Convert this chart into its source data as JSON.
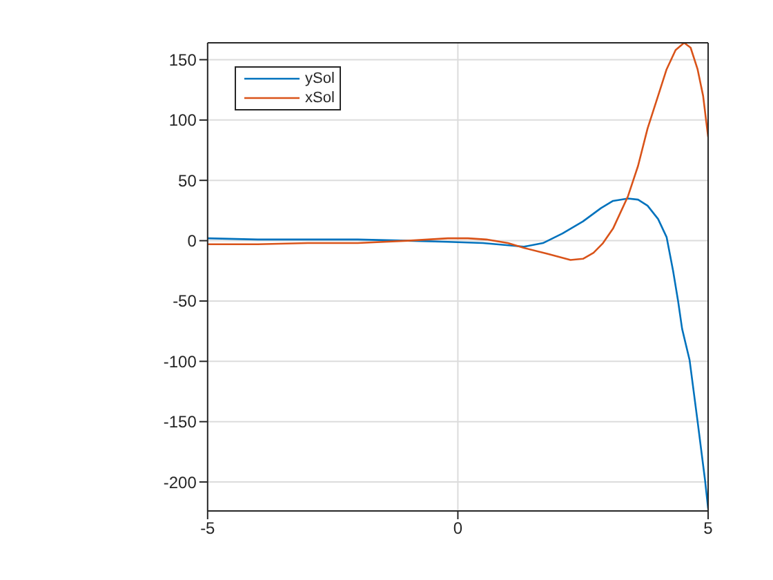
{
  "chart_data": {
    "type": "line",
    "xlim": [
      -5,
      5
    ],
    "xticks": [
      -5,
      0,
      5
    ],
    "ylim": [
      -224,
      164
    ],
    "yticks": [
      -200,
      -150,
      -100,
      -50,
      0,
      50,
      100,
      150
    ],
    "grid": true,
    "legend": "top left",
    "marker": "none",
    "line_style": "solid",
    "series": [
      {
        "name": "ySol",
        "color": "#0072bd",
        "x": [
          -5,
          -4,
          -3,
          -2,
          -1,
          -0.2,
          0.5,
          1.32,
          1.7,
          2.09,
          2.5,
          2.86,
          3.1,
          3.4,
          3.6,
          3.79,
          4.0,
          4.17,
          4.3,
          4.4,
          4.48,
          4.63,
          4.79,
          4.94,
          5
        ],
        "values": [
          2,
          1,
          1,
          1,
          0,
          -1,
          -2,
          -5,
          -2,
          6,
          16,
          27,
          33,
          35,
          34,
          29,
          18,
          3,
          -25,
          -50,
          -73,
          -99,
          -150,
          -199,
          -222
        ]
      },
      {
        "name": "xSol",
        "color": "#d95319",
        "x": [
          -5,
          -4,
          -3,
          -2,
          -1,
          -0.2,
          0.2,
          0.57,
          1,
          1.32,
          1.8,
          2.25,
          2.5,
          2.71,
          2.9,
          3.1,
          3.4,
          3.6,
          3.79,
          4.0,
          4.17,
          4.35,
          4.52,
          4.65,
          4.79,
          4.9,
          5
        ],
        "values": [
          -3,
          -3,
          -2,
          -2,
          0,
          2,
          2,
          1,
          -2,
          -6,
          -11,
          -16,
          -15,
          -10,
          -2,
          10,
          37,
          62,
          93,
          120,
          142,
          158,
          164,
          160,
          142,
          120,
          86
        ]
      }
    ]
  }
}
